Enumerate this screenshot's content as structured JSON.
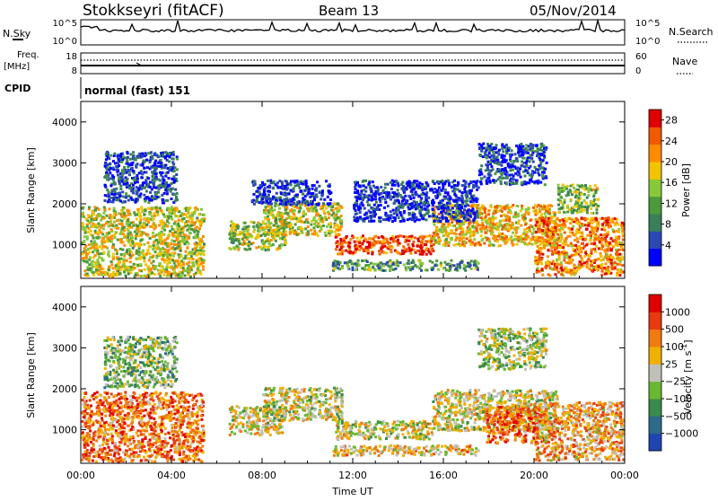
{
  "header": {
    "station": "Stokkseyri (fitACF)",
    "beam": "Beam 13",
    "date": "05/Nov/2014"
  },
  "noise_panel": {
    "left_label": "N.Sky",
    "right_label": "N.Search",
    "left_ticks": [
      "10^5",
      "10^0"
    ],
    "right_ticks": [
      "10^5",
      "10^0"
    ]
  },
  "freq_panel": {
    "left_label_line1": "Freq.",
    "left_label_line2": "[MHz]",
    "right_label": "Nave",
    "left_ticks": [
      "18",
      "8"
    ],
    "right_ticks": [
      "60",
      "0"
    ]
  },
  "cpid_panel": {
    "label": "CPID",
    "text": "normal (fast) 151"
  },
  "colors": {
    "power_scale": [
      "#0000ff",
      "#2b48b3",
      "#3a7f5a",
      "#4c9a3c",
      "#88c93a",
      "#f2c400",
      "#ff8c00",
      "#f05a00",
      "#e00000"
    ],
    "velocity_scale": [
      "#2045b0",
      "#2e6a8a",
      "#3a8a4a",
      "#6ab832",
      "#c0c0b8",
      "#f0b000",
      "#f07a10",
      "#e83a10",
      "#e00000"
    ]
  },
  "chart_data": [
    {
      "type": "heatmap",
      "title": "Power",
      "xlabel": "Time UT",
      "ylabel": "Slant Range [km]",
      "x_ticks": [
        "00:00",
        "04:00",
        "08:00",
        "12:00",
        "16:00",
        "20:00",
        "00:00"
      ],
      "x_range_hours": [
        0,
        24
      ],
      "y_ticks": [
        1000,
        2000,
        3000,
        4000
      ],
      "y_range_km": [
        180,
        4500
      ],
      "colorbar_label": "Power [dB]",
      "colorbar_ticks": [
        4,
        8,
        12,
        16,
        20,
        24,
        28
      ],
      "colorbar_range": [
        0,
        30
      ],
      "regions": [
        {
          "t0": 0.0,
          "t1": 5.4,
          "r0": 250,
          "r1": 1950,
          "level": 0.55
        },
        {
          "t0": 1.0,
          "t1": 4.2,
          "r0": 2050,
          "r1": 3300,
          "level": 0.15
        },
        {
          "t0": 6.5,
          "t1": 9.0,
          "r0": 900,
          "r1": 1600,
          "level": 0.5
        },
        {
          "t0": 8.0,
          "t1": 11.5,
          "r0": 1250,
          "r1": 2050,
          "level": 0.55
        },
        {
          "t0": 7.5,
          "t1": 11.0,
          "r0": 2000,
          "r1": 2600,
          "level": 0.1
        },
        {
          "t0": 11.2,
          "t1": 15.5,
          "r0": 800,
          "r1": 1250,
          "level": 0.85
        },
        {
          "t0": 11.0,
          "t1": 17.5,
          "r0": 400,
          "r1": 650,
          "level": 0.35
        },
        {
          "t0": 15.5,
          "t1": 21.0,
          "r0": 1000,
          "r1": 2000,
          "level": 0.65
        },
        {
          "t0": 12.0,
          "t1": 17.5,
          "r0": 1600,
          "r1": 2600,
          "level": 0.1
        },
        {
          "t0": 20.0,
          "t1": 23.9,
          "r0": 280,
          "r1": 1700,
          "level": 0.75
        },
        {
          "t0": 17.5,
          "t1": 20.5,
          "r0": 2500,
          "r1": 3500,
          "level": 0.15
        },
        {
          "t0": 21.0,
          "t1": 22.8,
          "r0": 1800,
          "r1": 2500,
          "level": 0.45
        }
      ]
    },
    {
      "type": "heatmap",
      "title": "Velocity",
      "xlabel": "Time UT",
      "ylabel": "Slant Range [km]",
      "x_ticks": [
        "00:00",
        "04:00",
        "08:00",
        "12:00",
        "16:00",
        "20:00",
        "00:00"
      ],
      "x_range_hours": [
        0,
        24
      ],
      "y_ticks": [
        1000,
        2000,
        3000,
        4000
      ],
      "y_range_km": [
        180,
        4500
      ],
      "colorbar_label": "Velocity [m s^-1]",
      "colorbar_ticks": [
        "1000",
        "500",
        "100",
        "25",
        "−25",
        "−100",
        "−500",
        "−1000"
      ],
      "regions": [
        {
          "t0": 0.0,
          "t1": 5.4,
          "r0": 250,
          "r1": 1950,
          "level": 0.75
        },
        {
          "t0": 1.0,
          "t1": 4.2,
          "r0": 2050,
          "r1": 3300,
          "level": 0.4
        },
        {
          "t0": 6.5,
          "t1": 9.0,
          "r0": 900,
          "r1": 1600,
          "level": 0.55
        },
        {
          "t0": 8.0,
          "t1": 11.5,
          "r0": 1250,
          "r1": 2050,
          "level": 0.5
        },
        {
          "t0": 11.2,
          "t1": 15.5,
          "r0": 800,
          "r1": 1250,
          "level": 0.5
        },
        {
          "t0": 11.0,
          "t1": 17.5,
          "r0": 400,
          "r1": 650,
          "level": 0.6
        },
        {
          "t0": 15.5,
          "t1": 21.0,
          "r0": 1000,
          "r1": 2000,
          "level": 0.52
        },
        {
          "t0": 17.8,
          "t1": 20.5,
          "r0": 700,
          "r1": 1600,
          "level": 0.78
        },
        {
          "t0": 20.0,
          "t1": 23.9,
          "r0": 280,
          "r1": 1700,
          "level": 0.65
        },
        {
          "t0": 17.5,
          "t1": 20.5,
          "r0": 2500,
          "r1": 3500,
          "level": 0.45
        }
      ]
    }
  ]
}
